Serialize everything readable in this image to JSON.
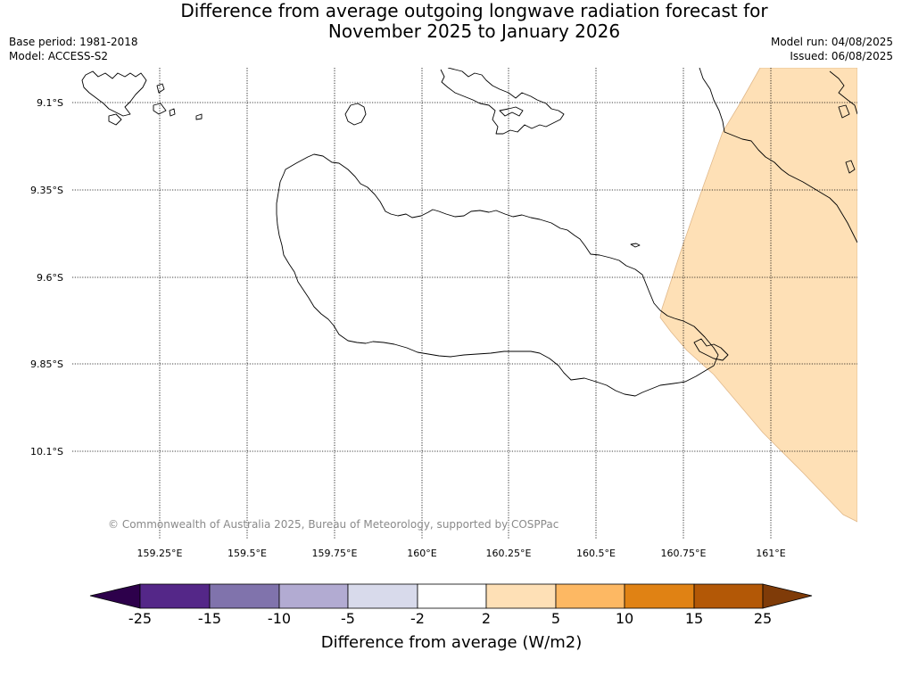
{
  "title_line1": "Difference from average outgoing longwave radiation forecast for",
  "title_line2": "November 2025 to January 2026",
  "base_period": "Base period: 1981-2018",
  "model": "Model: ACCESS-S2",
  "model_run": "Model run: 04/08/2025",
  "issued": "Issued: 06/08/2025",
  "copyright": "© Commonwealth of Australia 2025, Bureau of Meteorology, supported by COSPPac",
  "lat_labels": [
    "9.1°S",
    "9.35°S",
    "9.6°S",
    "9.85°S",
    "10.1°S"
  ],
  "lon_labels": [
    "159.25°E",
    "159.5°E",
    "159.75°E",
    "160°E",
    "160.25°E",
    "160.5°E",
    "160.75°E",
    "161°E"
  ],
  "colorbar": {
    "title": "Difference from average (W/m2)",
    "ticks": [
      "-25",
      "-15",
      "-10",
      "-5",
      "-2",
      "2",
      "5",
      "10",
      "15",
      "25"
    ],
    "colors": [
      "#2d004b",
      "#542788",
      "#8073ac",
      "#b2abd2",
      "#d8daeb",
      "#ffffff",
      "#fee0b6",
      "#fdb863",
      "#e08214",
      "#b35806",
      "#7f3b08"
    ]
  },
  "anomaly_fill_color": "#fee0b6"
}
